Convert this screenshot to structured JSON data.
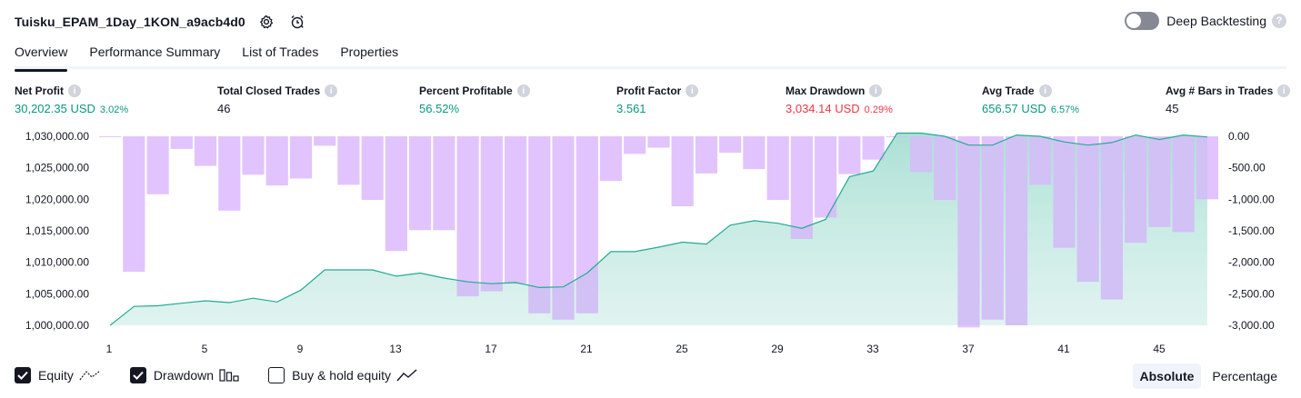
{
  "header": {
    "title": "Tuisku_EPAM_1Day_1KON_a9acb4d0",
    "deep_backtesting_label": "Deep Backtesting"
  },
  "tabs": [
    {
      "label": "Overview",
      "active": true
    },
    {
      "label": "Performance Summary",
      "active": false
    },
    {
      "label": "List of Trades",
      "active": false
    },
    {
      "label": "Properties",
      "active": false
    }
  ],
  "metrics": {
    "net_profit": {
      "label": "Net Profit",
      "value": "30,202.35 USD",
      "pct": "3.02%"
    },
    "total_closed_trades": {
      "label": "Total Closed Trades",
      "value": "46"
    },
    "percent_profitable": {
      "label": "Percent Profitable",
      "value": "56.52%"
    },
    "profit_factor": {
      "label": "Profit Factor",
      "value": "3.561"
    },
    "max_drawdown": {
      "label": "Max Drawdown",
      "value": "3,034.14 USD",
      "pct": "0.29%"
    },
    "avg_trade": {
      "label": "Avg Trade",
      "value": "656.57 USD",
      "pct": "6.57%"
    },
    "avg_bars": {
      "label": "Avg # Bars in Trades",
      "value": "45"
    }
  },
  "colors": {
    "positive": "#089981",
    "negative": "#f23645",
    "drawdown_bar": "#e1c4fd",
    "equity_line": "#22ab94",
    "equity_fill": "#d4f1ea"
  },
  "chart_data": {
    "type": "area",
    "x": [
      1,
      2,
      3,
      4,
      5,
      6,
      7,
      8,
      9,
      10,
      11,
      12,
      13,
      14,
      15,
      16,
      17,
      18,
      19,
      20,
      21,
      22,
      23,
      24,
      25,
      26,
      27,
      28,
      29,
      30,
      31,
      32,
      33,
      34,
      35,
      36,
      37,
      38,
      39,
      40,
      41,
      42,
      43,
      44,
      45,
      46,
      47
    ],
    "x_ticks": [
      "1",
      "5",
      "9",
      "13",
      "17",
      "21",
      "25",
      "29",
      "33",
      "37",
      "41",
      "45"
    ],
    "series": [
      {
        "name": "Equity",
        "axis": "left",
        "values": [
          1000000,
          1003000,
          1003100,
          1003500,
          1003900,
          1003600,
          1004300,
          1003700,
          1005600,
          1008800,
          1008800,
          1008800,
          1007800,
          1008300,
          1007500,
          1006900,
          1006600,
          1006800,
          1006000,
          1006100,
          1008300,
          1011700,
          1011700,
          1012400,
          1013200,
          1012900,
          1015900,
          1016600,
          1016200,
          1015400,
          1016800,
          1023600,
          1024500,
          1030500,
          1030500,
          1030000,
          1028600,
          1028600,
          1030200,
          1030000,
          1029100,
          1028600,
          1029000,
          1030200,
          1029500,
          1030200,
          1029900
        ]
      },
      {
        "name": "Drawdown",
        "axis": "right",
        "values": [
          0,
          -2150,
          -920,
          -200,
          -470,
          -1180,
          -610,
          -780,
          -670,
          -150,
          -770,
          -1010,
          -1820,
          -1490,
          -1490,
          -2540,
          -2460,
          -2340,
          -2810,
          -2910,
          -2810,
          -710,
          -280,
          -180,
          -1110,
          -590,
          -260,
          -520,
          -1010,
          -1630,
          -1290,
          -600,
          -370,
          0,
          -570,
          -1010,
          -3034,
          -2910,
          -3000,
          -770,
          -1770,
          -2310,
          -2590,
          -1690,
          -1440,
          -1520,
          -1000
        ]
      }
    ],
    "ylim_left": [
      1000000,
      1030000
    ],
    "yticks_left": [
      "1,000,000.00",
      "1,005,000.00",
      "1,010,000.00",
      "1,015,000.00",
      "1,020,000.00",
      "1,025,000.00",
      "1,030,000.00"
    ],
    "ylim_right": [
      -3000,
      0
    ],
    "yticks_right": [
      "-3,000.00",
      "-2,500.00",
      "-2,000.00",
      "-1,500.00",
      "-1,000.00",
      "-500.00",
      "0.00"
    ]
  },
  "legend": {
    "equity": {
      "label": "Equity",
      "checked": true
    },
    "drawdown": {
      "label": "Drawdown",
      "checked": true
    },
    "buy_hold": {
      "label": "Buy & hold equity",
      "checked": false
    }
  },
  "modes": {
    "absolute": "Absolute",
    "percentage": "Percentage"
  }
}
